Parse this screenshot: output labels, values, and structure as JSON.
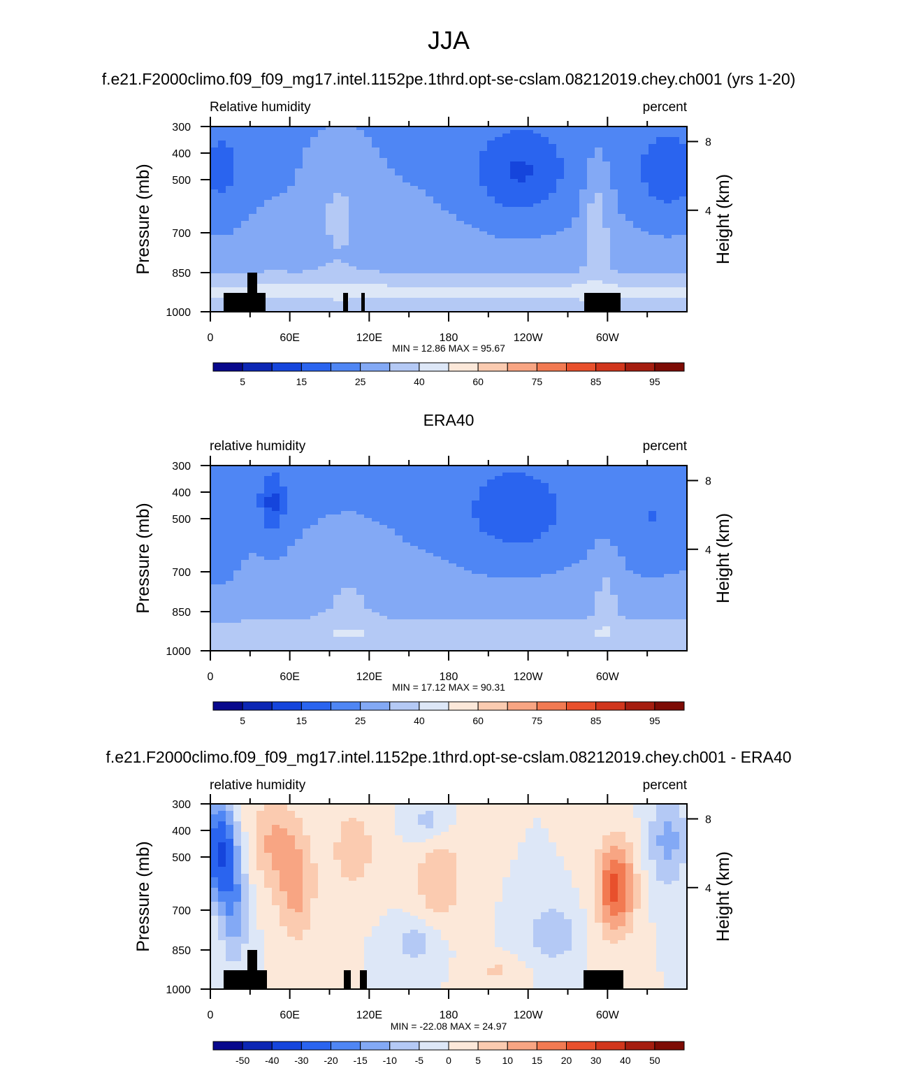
{
  "main_title": "JJA",
  "chart_data": [
    {
      "type": "heatmap",
      "title": "f.e21.F2000climo.f09_f09_mg17.intel.1152pe.1thrd.opt-se-cslam.08212019.chey.ch001 (yrs 1-20)",
      "left_string": "Relative humidity",
      "right_string": "percent",
      "ylabel": "Pressure (mb)",
      "ylabel_right": "Height (km)",
      "x_ticks": [
        "0",
        "60E",
        "120E",
        "180",
        "120W",
        "60W"
      ],
      "y_ticks": [
        "300",
        "400",
        "500",
        "700",
        "850",
        "1000"
      ],
      "height_ticks": [
        "8",
        "4"
      ],
      "stats": "MIN =  12.86  MAX =  95.67",
      "colorbar_levels": [
        "5",
        "15",
        "25",
        "40",
        "60",
        "75",
        "85",
        "95"
      ]
    },
    {
      "type": "heatmap",
      "title": "ERA40",
      "left_string": "relative humidity",
      "right_string": "percent",
      "ylabel": "Pressure (mb)",
      "ylabel_right": "Height (km)",
      "x_ticks": [
        "0",
        "60E",
        "120E",
        "180",
        "120W",
        "60W"
      ],
      "y_ticks": [
        "300",
        "400",
        "500",
        "700",
        "850",
        "1000"
      ],
      "height_ticks": [
        "8",
        "4"
      ],
      "stats": "MIN =  17.12  MAX =  90.31",
      "colorbar_levels": [
        "5",
        "15",
        "25",
        "40",
        "60",
        "75",
        "85",
        "95"
      ]
    },
    {
      "type": "heatmap",
      "title": "f.e21.F2000climo.f09_f09_mg17.intel.1152pe.1thrd.opt-se-cslam.08212019.chey.ch001 - ERA40",
      "left_string": "relative humidity",
      "right_string": "percent",
      "ylabel": "Pressure (mb)",
      "ylabel_right": "Height (km)",
      "x_ticks": [
        "0",
        "60E",
        "120E",
        "180",
        "120W",
        "60W"
      ],
      "y_ticks": [
        "300",
        "400",
        "500",
        "700",
        "850",
        "1000"
      ],
      "height_ticks": [
        "8",
        "4"
      ],
      "stats": "MIN = -22.08  MAX =  24.97",
      "colorbar_levels": [
        "-50",
        "-40",
        "-30",
        "-20",
        "-15",
        "-10",
        "-5",
        "0",
        "5",
        "10",
        "15",
        "20",
        "30",
        "40",
        "50"
      ]
    }
  ],
  "colors": {
    "colorbar": [
      "#08088c",
      "#0c26b4",
      "#1545dc",
      "#2a64ef",
      "#4f86f4",
      "#83a9f5",
      "#b4c9f5",
      "#dde7f7",
      "#fce8d9",
      "#fbcbb0",
      "#f8a583",
      "#f27a52",
      "#e8502c",
      "#d1361c",
      "#a51d0f",
      "#7d0b04"
    ]
  }
}
